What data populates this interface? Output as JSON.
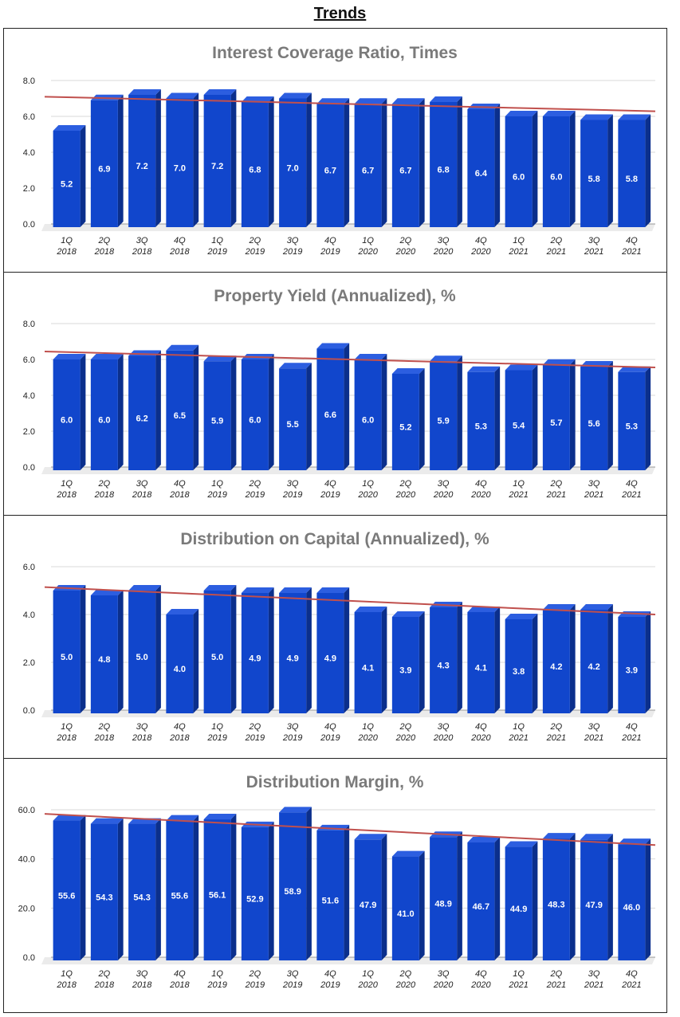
{
  "page": {
    "title": "Trends"
  },
  "colors": {
    "bar_front": "#1146cc",
    "bar_side": "#0b2f8c",
    "bar_top": "#2c5ee0",
    "trend": "#c0504d",
    "grid": "#d9d9d9",
    "floor": "#ebebeb"
  },
  "chart_data": [
    {
      "type": "bar",
      "title": "Interest Coverage Ratio, Times",
      "categories": [
        "1Q 2018",
        "2Q 2018",
        "3Q 2018",
        "4Q 2018",
        "1Q 2019",
        "2Q 2019",
        "3Q 2019",
        "4Q 2019",
        "1Q 2020",
        "2Q 2020",
        "3Q 2020",
        "4Q 2020",
        "1Q 2021",
        "2Q 2021",
        "3Q 2021",
        "4Q 2021"
      ],
      "values": [
        5.2,
        6.9,
        7.2,
        7.0,
        7.2,
        6.8,
        7.0,
        6.7,
        6.7,
        6.7,
        6.8,
        6.4,
        6.0,
        6.0,
        5.8,
        5.8
      ],
      "value_labels": [
        "5.2",
        "6.9",
        "7.2",
        "7.0",
        "7.2",
        "6.8",
        "7.0",
        "6.7",
        "6.7",
        "6.7",
        "6.8",
        "6.4",
        "6.0",
        "6.0",
        "5.8",
        "5.8"
      ],
      "ylim": [
        0,
        8
      ],
      "yticks": [
        "0.0",
        "2.0",
        "4.0",
        "6.0",
        "8.0"
      ],
      "ytick_values": [
        0,
        2,
        4,
        6,
        8
      ],
      "trendline": true,
      "xlabel": "",
      "ylabel": ""
    },
    {
      "type": "bar",
      "title": "Property Yield (Annualized), %",
      "categories": [
        "1Q 2018",
        "2Q 2018",
        "3Q 2018",
        "4Q 2018",
        "1Q 2019",
        "2Q 2019",
        "3Q 2019",
        "4Q 2019",
        "1Q 2020",
        "2Q 2020",
        "3Q 2020",
        "4Q 2020",
        "1Q 2021",
        "2Q 2021",
        "3Q 2021",
        "4Q 2021"
      ],
      "values": [
        6.0,
        6.0,
        6.2,
        6.5,
        5.9,
        6.0,
        5.5,
        6.6,
        6.0,
        5.2,
        5.9,
        5.3,
        5.4,
        5.7,
        5.6,
        5.3
      ],
      "value_labels": [
        "6.0",
        "6.0",
        "6.2",
        "6.5",
        "5.9",
        "6.0",
        "5.5",
        "6.6",
        "6.0",
        "5.2",
        "5.9",
        "5.3",
        "5.4",
        "5.7",
        "5.6",
        "5.3"
      ],
      "ylim": [
        0,
        8
      ],
      "yticks": [
        "0.0",
        "2.0",
        "4.0",
        "6.0",
        "8.0"
      ],
      "ytick_values": [
        0,
        2,
        4,
        6,
        8
      ],
      "trendline": true,
      "xlabel": "",
      "ylabel": ""
    },
    {
      "type": "bar",
      "title": "Distribution on Capital (Annualized), %",
      "categories": [
        "1Q 2018",
        "2Q 2018",
        "3Q 2018",
        "4Q 2018",
        "1Q 2019",
        "2Q 2019",
        "3Q 2019",
        "4Q 2019",
        "1Q 2020",
        "2Q 2020",
        "3Q 2020",
        "4Q 2020",
        "1Q 2021",
        "2Q 2021",
        "3Q 2021",
        "4Q 2021"
      ],
      "values": [
        5.0,
        4.8,
        5.0,
        4.0,
        5.0,
        4.9,
        4.9,
        4.9,
        4.1,
        3.9,
        4.3,
        4.1,
        3.8,
        4.2,
        4.2,
        3.9
      ],
      "value_labels": [
        "5.0",
        "4.8",
        "5.0",
        "4.0",
        "5.0",
        "4.9",
        "4.9",
        "4.9",
        "4.1",
        "3.9",
        "4.3",
        "4.1",
        "3.8",
        "4.2",
        "4.2",
        "3.9"
      ],
      "ylim": [
        0,
        6
      ],
      "yticks": [
        "0.0",
        "2.0",
        "4.0",
        "6.0"
      ],
      "ytick_values": [
        0,
        2,
        4,
        6
      ],
      "trendline": true,
      "xlabel": "",
      "ylabel": ""
    },
    {
      "type": "bar",
      "title": "Distribution Margin, %",
      "categories": [
        "1Q 2018",
        "2Q 2018",
        "3Q 2018",
        "4Q 2018",
        "1Q 2019",
        "2Q 2019",
        "3Q 2019",
        "4Q 2019",
        "1Q 2020",
        "2Q 2020",
        "3Q 2020",
        "4Q 2020",
        "1Q 2021",
        "2Q 2021",
        "3Q 2021",
        "4Q 2021"
      ],
      "values": [
        55.6,
        54.3,
        54.3,
        55.6,
        56.1,
        52.9,
        58.9,
        51.6,
        47.9,
        41.0,
        48.9,
        46.7,
        44.9,
        48.3,
        47.9,
        46.0
      ],
      "value_labels": [
        "55.6",
        "54.3",
        "54.3",
        "55.6",
        "56.1",
        "52.9",
        "58.9",
        "51.6",
        "47.9",
        "41.0",
        "48.9",
        "46.7",
        "44.9",
        "48.3",
        "47.9",
        "46.0"
      ],
      "ylim": [
        0,
        60
      ],
      "yticks": [
        "0.0",
        "20.0",
        "40.0",
        "60.0"
      ],
      "ytick_values": [
        0,
        20,
        40,
        60
      ],
      "trendline": true,
      "xlabel": "",
      "ylabel": ""
    }
  ]
}
